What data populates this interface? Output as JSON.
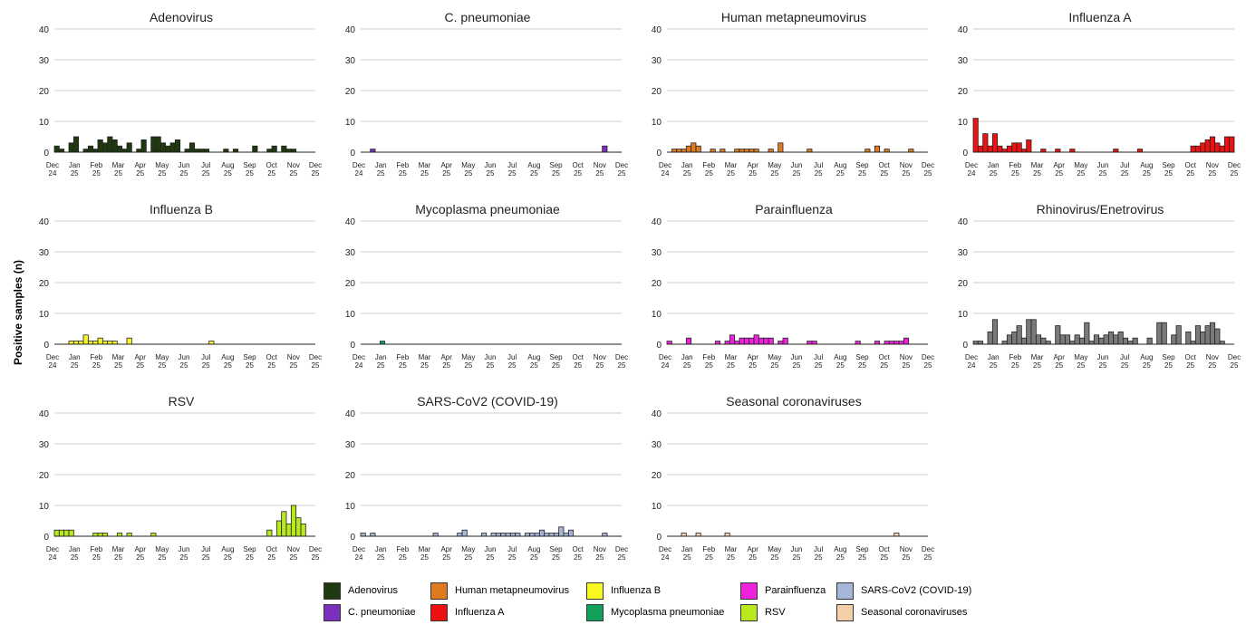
{
  "figure": {
    "ylabel": "Positive samples (n)"
  },
  "chart_data": {
    "type": "bar",
    "y_axis": {
      "ylim": [
        0,
        40
      ],
      "ticks": [
        0,
        10,
        20,
        30,
        40
      ]
    },
    "x_axis": {
      "range": [
        "Dec 2024",
        "Dec 2025"
      ],
      "tick_labels": [
        [
          "Dec",
          "24"
        ],
        [
          "Jan",
          "25"
        ],
        [
          "Feb",
          "25"
        ],
        [
          "Mar",
          "25"
        ],
        [
          "Apr",
          "25"
        ],
        [
          "May",
          "25"
        ],
        [
          "Jun",
          "25"
        ],
        [
          "Jul",
          "25"
        ],
        [
          "Aug",
          "25"
        ],
        [
          "Sep",
          "25"
        ],
        [
          "Oct",
          "25"
        ],
        [
          "Nov",
          "25"
        ],
        [
          "Dec",
          "25"
        ]
      ]
    },
    "grid": true,
    "legend_position": "bottom",
    "bins": 54,
    "panels": [
      {
        "title": "Adenovirus",
        "color": "#1f3a0f",
        "values": [
          2,
          1,
          0,
          3,
          5,
          0,
          1,
          2,
          1,
          4,
          3,
          5,
          4,
          2,
          1,
          3,
          0,
          1,
          4,
          0,
          5,
          5,
          3,
          2,
          3,
          4,
          0,
          1,
          3,
          1,
          1,
          1,
          0,
          0,
          0,
          1,
          0,
          1,
          0,
          0,
          0,
          2,
          0,
          0,
          1,
          2,
          0,
          2,
          1,
          1,
          0,
          0,
          0,
          0
        ]
      },
      {
        "title": "C. pneumoniae",
        "color": "#7b2fbe",
        "values": [
          0,
          0,
          1,
          0,
          0,
          0,
          0,
          0,
          0,
          0,
          0,
          0,
          0,
          0,
          0,
          0,
          0,
          0,
          0,
          0,
          0,
          0,
          0,
          0,
          0,
          0,
          0,
          0,
          0,
          0,
          0,
          0,
          0,
          0,
          0,
          0,
          0,
          0,
          0,
          0,
          0,
          0,
          0,
          0,
          0,
          0,
          0,
          0,
          0,
          0,
          2,
          0,
          0,
          0
        ]
      },
      {
        "title": "Human metapneumovirus",
        "color": "#e07a1f",
        "values": [
          0,
          1,
          1,
          1,
          2,
          3,
          2,
          0,
          0,
          1,
          0,
          1,
          0,
          0,
          1,
          1,
          1,
          1,
          1,
          0,
          0,
          1,
          0,
          3,
          0,
          0,
          0,
          0,
          0,
          1,
          0,
          0,
          0,
          0,
          0,
          0,
          0,
          0,
          0,
          0,
          0,
          1,
          0,
          2,
          0,
          1,
          0,
          0,
          0,
          0,
          1,
          0,
          0,
          0
        ]
      },
      {
        "title": "Influenza A",
        "color": "#ee1111",
        "values": [
          11,
          2,
          6,
          2,
          6,
          2,
          1,
          2,
          3,
          3,
          1,
          4,
          0,
          0,
          1,
          0,
          0,
          1,
          0,
          0,
          1,
          0,
          0,
          0,
          0,
          0,
          0,
          0,
          0,
          1,
          0,
          0,
          0,
          0,
          1,
          0,
          0,
          0,
          0,
          0,
          0,
          0,
          0,
          0,
          0,
          2,
          2,
          3,
          4,
          5,
          3,
          2,
          5,
          5
        ]
      },
      {
        "title": "Influenza B",
        "color": "#f8f820",
        "values": [
          0,
          0,
          0,
          1,
          1,
          1,
          3,
          1,
          1,
          2,
          1,
          1,
          1,
          0,
          0,
          2,
          0,
          0,
          0,
          0,
          0,
          0,
          0,
          0,
          0,
          0,
          0,
          0,
          0,
          0,
          0,
          0,
          1,
          0,
          0,
          0,
          0,
          0,
          0,
          0,
          0,
          0,
          0,
          0,
          0,
          0,
          0,
          0,
          0,
          0,
          0,
          0,
          0,
          0
        ]
      },
      {
        "title": "Mycoplasma pneumoniae",
        "color": "#12a05a",
        "values": [
          0,
          0,
          0,
          0,
          1,
          0,
          0,
          0,
          0,
          0,
          0,
          0,
          0,
          0,
          0,
          0,
          0,
          0,
          0,
          0,
          0,
          0,
          0,
          0,
          0,
          0,
          0,
          0,
          0,
          0,
          0,
          0,
          0,
          0,
          0,
          0,
          0,
          0,
          0,
          0,
          0,
          0,
          0,
          0,
          0,
          0,
          0,
          0,
          0,
          0,
          0,
          0,
          0,
          0
        ]
      },
      {
        "title": "Parainfluenza",
        "color": "#ee22dd",
        "values": [
          1,
          0,
          0,
          0,
          2,
          0,
          0,
          0,
          0,
          0,
          1,
          0,
          1,
          3,
          1,
          2,
          2,
          2,
          3,
          2,
          2,
          2,
          0,
          1,
          2,
          0,
          0,
          0,
          0,
          1,
          1,
          0,
          0,
          0,
          0,
          0,
          0,
          0,
          0,
          1,
          0,
          0,
          0,
          1,
          0,
          1,
          1,
          1,
          1,
          2,
          0,
          0,
          0,
          0
        ]
      },
      {
        "title": "Rhinovirus/Enetrovirus",
        "color": "#7a7a7a",
        "values": [
          1,
          1,
          0,
          4,
          8,
          0,
          1,
          3,
          4,
          6,
          2,
          8,
          8,
          3,
          2,
          1,
          0,
          6,
          3,
          3,
          1,
          3,
          2,
          7,
          1,
          3,
          2,
          3,
          4,
          3,
          4,
          2,
          1,
          2,
          0,
          0,
          2,
          0,
          7,
          7,
          0,
          3,
          6,
          0,
          4,
          1,
          6,
          4,
          6,
          7,
          5,
          1,
          0,
          0
        ]
      },
      {
        "title": "RSV",
        "color": "#b8e91c",
        "values": [
          2,
          2,
          2,
          2,
          0,
          0,
          0,
          0,
          1,
          1,
          1,
          0,
          0,
          1,
          0,
          1,
          0,
          0,
          0,
          0,
          1,
          0,
          0,
          0,
          0,
          0,
          0,
          0,
          0,
          0,
          0,
          0,
          0,
          0,
          0,
          0,
          0,
          0,
          0,
          0,
          0,
          0,
          0,
          0,
          2,
          0,
          5,
          8,
          4,
          10,
          6,
          4,
          0,
          0
        ]
      },
      {
        "title": "SARS-CoV2 (COVID-19)",
        "color": "#a6b6d8",
        "values": [
          1,
          0,
          1,
          0,
          0,
          0,
          0,
          0,
          0,
          0,
          0,
          0,
          0,
          0,
          0,
          1,
          0,
          0,
          0,
          0,
          1,
          2,
          0,
          0,
          0,
          1,
          0,
          1,
          1,
          1,
          1,
          1,
          1,
          0,
          1,
          1,
          1,
          2,
          1,
          1,
          1,
          3,
          1,
          2,
          0,
          0,
          0,
          0,
          0,
          0,
          1,
          0,
          0,
          0
        ]
      },
      {
        "title": "Seasonal coronaviruses",
        "color": "#f5cfa8",
        "values": [
          0,
          0,
          0,
          1,
          0,
          0,
          1,
          0,
          0,
          0,
          0,
          0,
          1,
          0,
          0,
          0,
          0,
          0,
          0,
          0,
          0,
          0,
          0,
          0,
          0,
          0,
          0,
          0,
          0,
          0,
          0,
          0,
          0,
          0,
          0,
          0,
          0,
          0,
          0,
          0,
          0,
          0,
          0,
          0,
          0,
          0,
          0,
          1,
          0,
          0,
          0,
          0,
          0,
          0
        ]
      }
    ],
    "legend": [
      {
        "label": "Adenovirus",
        "color": "#1f3a0f"
      },
      {
        "label": "C. pneumoniae",
        "color": "#7b2fbe"
      },
      {
        "label": "Human metapneumovirus",
        "color": "#e07a1f"
      },
      {
        "label": "Influenza A",
        "color": "#ee1111"
      },
      {
        "label": "Influenza B",
        "color": "#f8f820"
      },
      {
        "label": "Mycoplasma pneumoniae",
        "color": "#12a05a"
      },
      {
        "label": "Parainfluenza",
        "color": "#ee22dd"
      },
      {
        "label": "RSV",
        "color": "#b8e91c"
      },
      {
        "label": "SARS-CoV2 (COVID-19)",
        "color": "#a6b6d8"
      },
      {
        "label": "Seasonal coronaviruses",
        "color": "#f5cfa8"
      }
    ]
  }
}
